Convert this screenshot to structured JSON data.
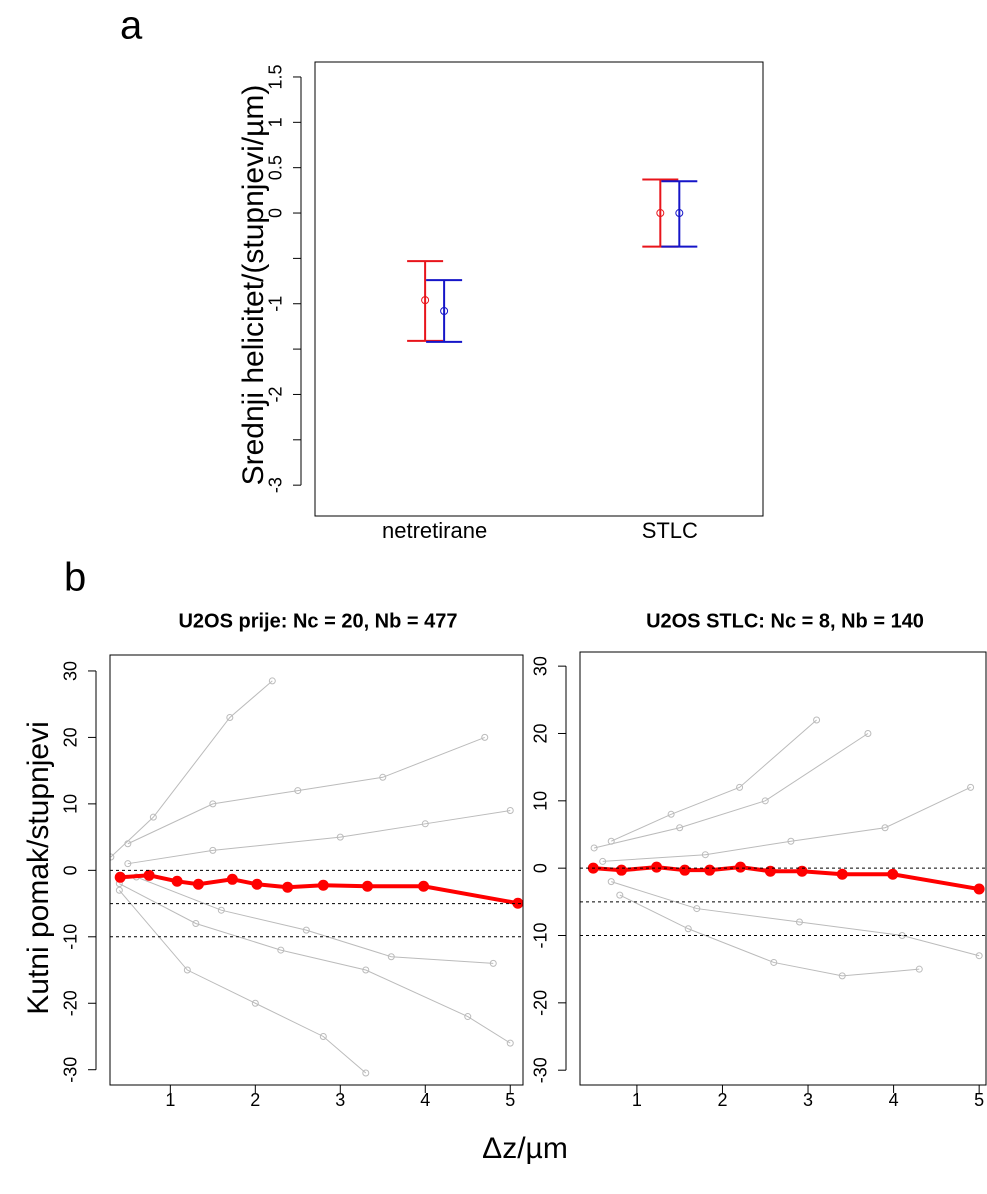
{
  "chart_data": [
    {
      "type": "errorbar",
      "label": "a",
      "ylabel": "Srednji helicitet/(stupnjevi/µm)",
      "categories": [
        "netretirane",
        "STLC"
      ],
      "series": [
        {
          "color": "#e8141b",
          "values": [
            -0.96,
            0
          ],
          "lower": [
            -1.41,
            -0.37
          ],
          "upper": [
            -0.53,
            0.37
          ]
        },
        {
          "color": "#1515c8",
          "values": [
            -1.08,
            0
          ],
          "lower": [
            -1.42,
            -0.37
          ],
          "upper": [
            -0.74,
            0.35
          ]
        }
      ],
      "ylim": [
        -3.34,
        1.665
      ],
      "yticks": [
        -3,
        -2,
        -1,
        0,
        0.5,
        1,
        1.5
      ],
      "yminorticks": [
        -2.5,
        -1.5,
        -0.5
      ]
    },
    {
      "type": "line",
      "label": "b",
      "title": "U2OS prije: Nc = 20, Nb = 477",
      "xlabel": "Δz/µm",
      "ylabel": "Kutni pomak/stupnjevi",
      "xlim": [
        0.29,
        5.15
      ],
      "xticks": [
        1,
        2,
        3,
        4,
        5
      ],
      "ylim": [
        -32.3,
        32.4
      ],
      "yticks": [
        -30,
        -20,
        -10,
        0,
        10,
        20,
        30
      ],
      "hlines": [
        0,
        -5,
        -10
      ],
      "series": [
        {
          "color": "#bbbbbb",
          "line_width": 1,
          "x": [
            0.3,
            0.8,
            1.7,
            2.2
          ],
          "values": [
            2,
            8,
            23,
            28.5
          ]
        },
        {
          "color": "#bbbbbb",
          "line_width": 1,
          "x": [
            0.4,
            1.2,
            2.0,
            2.8,
            3.3
          ],
          "values": [
            -3,
            -15,
            -20,
            -25,
            -30.5
          ]
        },
        {
          "color": "#bbbbbb",
          "line_width": 1,
          "x": [
            0.5,
            1.5,
            2.5,
            3.5,
            4.7
          ],
          "values": [
            4,
            10,
            12,
            14,
            20
          ]
        },
        {
          "color": "#bbbbbb",
          "line_width": 1,
          "x": [
            0.4,
            1.3,
            2.3,
            3.3,
            4.5,
            5.0
          ],
          "values": [
            -2,
            -8,
            -12,
            -15,
            -22,
            -26
          ]
        },
        {
          "color": "#bbbbbb",
          "line_width": 1,
          "x": [
            0.5,
            1.5,
            3,
            4,
            5
          ],
          "values": [
            1,
            3,
            5,
            7,
            9
          ]
        },
        {
          "color": "#bbbbbb",
          "line_width": 1,
          "x": [
            0.6,
            1.6,
            2.6,
            3.6,
            4.8
          ],
          "values": [
            -1,
            -6,
            -9,
            -13,
            -14
          ]
        },
        {
          "color": "#ff0000",
          "line_width": 4,
          "x": [
            0.41,
            0.75,
            1.08,
            1.33,
            1.73,
            2.02,
            2.38,
            2.8,
            3.32,
            3.98,
            5.09
          ],
          "values": [
            -1.05,
            -0.75,
            -1.65,
            -2.1,
            -1.35,
            -2.1,
            -2.55,
            -2.25,
            -2.4,
            -2.4,
            -4.95
          ]
        }
      ]
    },
    {
      "type": "line",
      "title": "U2OS STLC: Nc = 8, Nb = 140",
      "xlim": [
        0.335,
        5.08
      ],
      "xticks": [
        1,
        2,
        3,
        4,
        5
      ],
      "ylim": [
        -32.2,
        32.1
      ],
      "yticks": [
        -30,
        -20,
        -10,
        0,
        10,
        20,
        30
      ],
      "hlines": [
        0,
        -5,
        -10
      ],
      "series": [
        {
          "color": "#bbbbbb",
          "line_width": 1,
          "x": [
            0.7,
            1.4,
            2.2,
            3.1
          ],
          "values": [
            4,
            8,
            12,
            22
          ]
        },
        {
          "color": "#bbbbbb",
          "line_width": 1,
          "x": [
            0.8,
            1.6,
            2.6,
            3.4,
            4.3
          ],
          "values": [
            -4,
            -9,
            -14,
            -16,
            -15
          ]
        },
        {
          "color": "#bbbbbb",
          "line_width": 1,
          "x": [
            0.5,
            1.5,
            2.5,
            3.7
          ],
          "values": [
            3,
            6,
            10,
            20
          ]
        },
        {
          "color": "#bbbbbb",
          "line_width": 1,
          "x": [
            0.6,
            1.8,
            2.8,
            3.9,
            4.9
          ],
          "values": [
            1,
            2,
            4,
            6,
            12
          ]
        },
        {
          "color": "#bbbbbb",
          "line_width": 1,
          "x": [
            0.7,
            1.7,
            2.9,
            4.1,
            5.0
          ],
          "values": [
            -2,
            -6,
            -8,
            -10,
            -13
          ]
        },
        {
          "color": "#ff0000",
          "line_width": 4,
          "x": [
            0.49,
            0.82,
            1.23,
            1.56,
            1.85,
            2.21,
            2.56,
            2.93,
            3.4,
            3.99,
            5.0
          ],
          "values": [
            0,
            -0.3,
            0.15,
            -0.3,
            -0.3,
            0.15,
            -0.45,
            -0.45,
            -0.9,
            -0.9,
            -3.1
          ]
        }
      ]
    }
  ]
}
